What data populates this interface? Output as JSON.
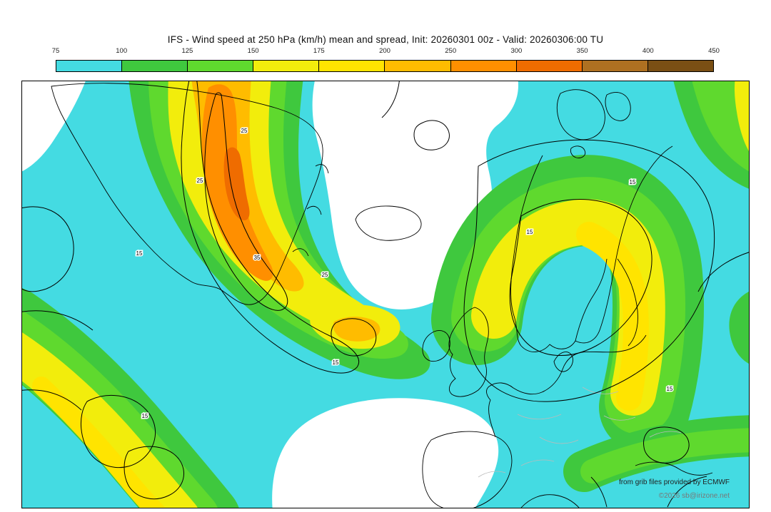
{
  "header": {
    "title": "IFS - Wind speed at 250 hPa (km/h) mean and spread, Init: 20260301 00z - Valid: 20260306:00 TU"
  },
  "colorbar": {
    "ticks": [
      "75",
      "100",
      "125",
      "150",
      "175",
      "200",
      "250",
      "300",
      "350",
      "400",
      "450"
    ],
    "colors": [
      "#44DBE2",
      "#3FC83E",
      "#5FD92E",
      "#F2ED0C",
      "#FFE400",
      "#FFBC00",
      "#FF8F00",
      "#EF6C00",
      "#AE7021",
      "#7A4F14"
    ]
  },
  "map": {
    "contour_labels": {
      "l15": "15",
      "l25": "25",
      "l35": "35"
    },
    "attribution_line1": "from grib files provided by ECMWF",
    "attribution_line2": "©2026 sb@irizone.net"
  },
  "chart_data": {
    "type": "heatmap",
    "title": "IFS - Wind speed at 250 hPa (km/h) mean and spread",
    "init": "20260301 00z",
    "valid": "20260306:00 TU",
    "unit": "km/h",
    "scale_levels_kmh": [
      75,
      100,
      125,
      150,
      175,
      200,
      250,
      300,
      350,
      400,
      450
    ],
    "scale_colors": [
      "#44DBE2",
      "#3FC83E",
      "#5FD92E",
      "#F2ED0C",
      "#FFE400",
      "#FFBC00",
      "#FF8F00",
      "#EF6C00",
      "#AE7021",
      "#7A4F14"
    ],
    "spread_contour_labels": [
      15,
      25,
      35
    ],
    "legend_position": "top"
  }
}
